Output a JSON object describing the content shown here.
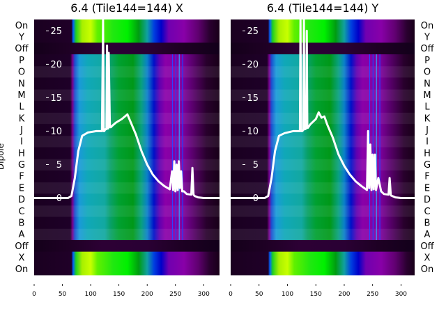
{
  "chart_data": [
    {
      "type": "heatmap",
      "title": "6.4 (Tile144=144) X",
      "ylabel": "Dipole",
      "row_labels": [
        "On",
        "Y",
        "Off",
        "P",
        "O",
        "N",
        "M",
        "L",
        "K",
        "J",
        "I",
        "H",
        "G",
        "F",
        "E",
        "D",
        "C",
        "B",
        "A",
        "Off",
        "X",
        "On"
      ],
      "row_labels_side": "left",
      "x_ticks": [
        0,
        50,
        100,
        150,
        200,
        250,
        300
      ],
      "xlim": [
        0,
        328
      ],
      "overlay_y_ticks": [
        0,
        5,
        10,
        15,
        20,
        25
      ],
      "overlay_ylim": [
        -11.5,
        26.7
      ],
      "overlay_line": {
        "x": [
          0,
          60,
          66,
          72,
          78,
          85,
          95,
          110,
          120,
          122,
          123,
          124,
          126,
          128,
          129,
          130,
          131,
          132,
          134,
          135,
          136,
          138,
          145,
          155,
          165,
          170,
          180,
          190,
          200,
          210,
          220,
          230,
          240,
          244,
          246,
          248,
          250,
          252,
          254,
          256,
          258,
          260,
          262,
          265,
          270,
          278,
          280,
          282,
          284,
          290,
          300,
          328
        ],
        "y": [
          0,
          0,
          0.3,
          3,
          7,
          9.3,
          9.8,
          10,
          10,
          28,
          10,
          10,
          10.3,
          10.3,
          22.8,
          10.4,
          10.4,
          21.7,
          10.6,
          10.6,
          10.6,
          10.8,
          11.3,
          11.8,
          12.5,
          11.5,
          9.5,
          7,
          5,
          3.5,
          2.5,
          1.8,
          1.3,
          4,
          1.2,
          5.5,
          1,
          5,
          1.2,
          5.5,
          1.5,
          4,
          1,
          1,
          0.6,
          0.5,
          4.5,
          0.5,
          0.3,
          0.1,
          0,
          0
        ]
      }
    },
    {
      "type": "heatmap",
      "title": "6.4 (Tile144=144) Y",
      "row_labels": [
        "On",
        "Y",
        "Off",
        "P",
        "O",
        "N",
        "M",
        "L",
        "K",
        "J",
        "I",
        "H",
        "G",
        "F",
        "E",
        "D",
        "C",
        "B",
        "A",
        "Off",
        "X",
        "On"
      ],
      "row_labels_side": "right",
      "x_ticks": [
        0,
        50,
        100,
        150,
        200,
        250,
        300
      ],
      "xlim": [
        0,
        324
      ],
      "overlay_y_ticks": [
        0,
        5,
        10,
        15,
        20,
        25
      ],
      "overlay_ylim": [
        -11.5,
        26.7
      ],
      "overlay_line": {
        "x": [
          0,
          60,
          66,
          72,
          78,
          85,
          95,
          110,
          120,
          122,
          123,
          124,
          126,
          128,
          129,
          130,
          131,
          133,
          134,
          135,
          136,
          140,
          150,
          155,
          160,
          165,
          170,
          180,
          190,
          200,
          210,
          220,
          230,
          240,
          242,
          244,
          246,
          248,
          250,
          252,
          254,
          256,
          260,
          265,
          270,
          278,
          280,
          282,
          290,
          300,
          324
        ],
        "y": [
          0,
          0,
          0.3,
          3,
          7,
          9.3,
          9.7,
          10,
          10,
          10,
          27,
          10,
          10,
          10.2,
          27,
          10.3,
          10.3,
          10.4,
          25,
          10.5,
          10.5,
          11,
          11.8,
          12.8,
          12,
          12.2,
          11,
          9,
          6.5,
          4.8,
          3.5,
          2.5,
          1.8,
          1.2,
          10,
          1.5,
          8,
          1.2,
          6.5,
          1.3,
          6.5,
          1.2,
          3,
          1,
          0.6,
          0.5,
          3,
          0.4,
          0.1,
          0,
          0
        ]
      }
    }
  ],
  "colors": {
    "background": "#1a0020",
    "line": "#ffffff",
    "axis_text": "#ffffff"
  }
}
